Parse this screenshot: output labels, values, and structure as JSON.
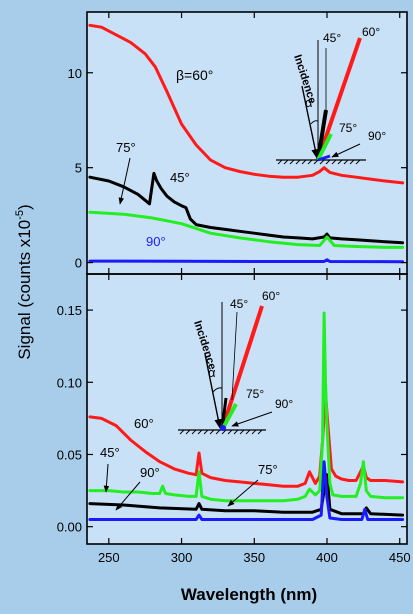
{
  "figure": {
    "ylabel": "Signal (counts x10",
    "ylabel_exp": "-5",
    "ylabel_close": ")",
    "xlabel": "Wavelength (nm)",
    "background": "#a8cdea",
    "plot_background": "#c9e1f6"
  },
  "chart_data": [
    {
      "type": "line",
      "panel": "top",
      "xlim": [
        235,
        455
      ],
      "ylim": [
        -0.6,
        13.2
      ],
      "yticks": [
        0,
        5,
        10
      ],
      "ytick_labels": [
        "0",
        "5",
        "10"
      ],
      "xticks": [
        250,
        300,
        350,
        400,
        450
      ],
      "grid": false,
      "series": [
        {
          "angle": "60",
          "color": "#ff1a1a",
          "x": [
            237,
            245,
            255,
            265,
            275,
            282,
            290,
            300,
            310,
            320,
            330,
            340,
            350,
            360,
            370,
            380,
            390,
            395,
            398,
            402,
            410,
            420,
            430,
            440,
            452
          ],
          "y": [
            12.5,
            12.4,
            12.0,
            11.6,
            11.0,
            10.3,
            9.0,
            7.3,
            6.2,
            5.4,
            5.0,
            4.8,
            4.65,
            4.55,
            4.5,
            4.5,
            4.6,
            4.8,
            5.0,
            4.75,
            4.6,
            4.5,
            4.4,
            4.3,
            4.2
          ]
        },
        {
          "angle": "45",
          "color": "#000000",
          "x": [
            237,
            250,
            260,
            270,
            278,
            281,
            283,
            286,
            290,
            295,
            300,
            303,
            306,
            310,
            320,
            330,
            340,
            350,
            360,
            370,
            380,
            390,
            398,
            400,
            402,
            410,
            420,
            430,
            440,
            452
          ],
          "y": [
            4.5,
            4.3,
            4.0,
            3.6,
            3.1,
            4.7,
            4.3,
            3.9,
            3.5,
            3.2,
            3.0,
            2.9,
            2.3,
            2.0,
            1.85,
            1.75,
            1.65,
            1.55,
            1.45,
            1.35,
            1.3,
            1.25,
            1.35,
            1.5,
            1.3,
            1.25,
            1.2,
            1.15,
            1.1,
            1.05
          ]
        },
        {
          "angle": "75",
          "color": "#22ee22",
          "x": [
            237,
            260,
            280,
            300,
            320,
            340,
            360,
            380,
            395,
            400,
            405,
            420,
            440,
            452
          ],
          "y": [
            2.65,
            2.55,
            2.35,
            2.05,
            1.55,
            1.3,
            1.1,
            0.95,
            0.9,
            1.35,
            0.9,
            0.85,
            0.8,
            0.8
          ]
        },
        {
          "angle": "90",
          "color": "#1a1aff",
          "x": [
            237,
            300,
            360,
            398,
            400,
            402,
            452
          ],
          "y": [
            0.08,
            0.07,
            0.06,
            0.06,
            0.15,
            0.06,
            0.05
          ]
        }
      ],
      "annotations": [
        "β=60°",
        "75°",
        "45°",
        "90°"
      ],
      "inset": {
        "incidence": "Incidence",
        "alpha": "α",
        "angle_labels": [
          "60°",
          "45°",
          "75°",
          "90°"
        ]
      }
    },
    {
      "type": "line",
      "panel": "bottom",
      "xlim": [
        235,
        455
      ],
      "ylim": [
        -0.012,
        0.175
      ],
      "yticks": [
        0.0,
        0.05,
        0.1,
        0.15
      ],
      "ytick_labels": [
        "0.00",
        "0.05",
        "0.10",
        "0.15"
      ],
      "xticks": [
        250,
        300,
        350,
        400,
        450
      ],
      "xtick_labels": [
        "250",
        "300",
        "350",
        "400",
        "450"
      ],
      "grid": false,
      "series": [
        {
          "angle": "60",
          "color": "#ff1a1a",
          "x": [
            237,
            245,
            255,
            265,
            275,
            285,
            295,
            305,
            310,
            312,
            314,
            320,
            330,
            340,
            350,
            360,
            370,
            380,
            385,
            388,
            392,
            395,
            397,
            399,
            401,
            403,
            406,
            410,
            415,
            420,
            423,
            425,
            427,
            430,
            440,
            452
          ],
          "y": [
            0.076,
            0.075,
            0.07,
            0.06,
            0.052,
            0.045,
            0.04,
            0.037,
            0.036,
            0.051,
            0.037,
            0.034,
            0.032,
            0.031,
            0.03,
            0.029,
            0.028,
            0.028,
            0.03,
            0.038,
            0.03,
            0.035,
            0.06,
            0.092,
            0.065,
            0.04,
            0.035,
            0.033,
            0.032,
            0.032,
            0.038,
            0.042,
            0.034,
            0.032,
            0.032,
            0.031
          ]
        },
        {
          "angle": "45",
          "color": "#000000",
          "x": [
            237,
            260,
            285,
            310,
            312,
            314,
            330,
            350,
            370,
            390,
            396,
            398,
            400,
            402,
            410,
            425,
            427,
            430,
            452
          ],
          "y": [
            0.016,
            0.015,
            0.013,
            0.012,
            0.016,
            0.012,
            0.011,
            0.011,
            0.01,
            0.01,
            0.012,
            0.025,
            0.036,
            0.012,
            0.009,
            0.009,
            0.013,
            0.009,
            0.008
          ]
        },
        {
          "angle": "75",
          "color": "#22ee22",
          "x": [
            237,
            250,
            260,
            270,
            280,
            285,
            287,
            289,
            295,
            305,
            310,
            312,
            314,
            320,
            330,
            340,
            350,
            360,
            370,
            380,
            385,
            388,
            392,
            395,
            397,
            398,
            399,
            400,
            402,
            404,
            410,
            420,
            423,
            425,
            427,
            430,
            440,
            452
          ],
          "y": [
            0.025,
            0.025,
            0.024,
            0.024,
            0.023,
            0.023,
            0.028,
            0.023,
            0.022,
            0.021,
            0.021,
            0.038,
            0.021,
            0.019,
            0.018,
            0.018,
            0.018,
            0.018,
            0.018,
            0.019,
            0.021,
            0.026,
            0.022,
            0.025,
            0.06,
            0.148,
            0.1,
            0.07,
            0.03,
            0.022,
            0.021,
            0.021,
            0.03,
            0.045,
            0.025,
            0.021,
            0.02,
            0.02
          ]
        },
        {
          "angle": "90",
          "color": "#1a1aff",
          "x": [
            237,
            280,
            310,
            312,
            314,
            350,
            390,
            396,
            398,
            400,
            402,
            410,
            424,
            426,
            428,
            452
          ],
          "y": [
            0.005,
            0.005,
            0.005,
            0.008,
            0.005,
            0.005,
            0.005,
            0.008,
            0.045,
            0.02,
            0.006,
            0.005,
            0.005,
            0.012,
            0.005,
            0.005
          ]
        }
      ],
      "annotations": [
        "60°",
        "45°",
        "90°",
        "75°"
      ],
      "inset": {
        "incidence": "Incidence",
        "alpha": "α",
        "angle_labels": [
          "45°",
          "60°",
          "75°",
          "90°"
        ]
      }
    }
  ]
}
